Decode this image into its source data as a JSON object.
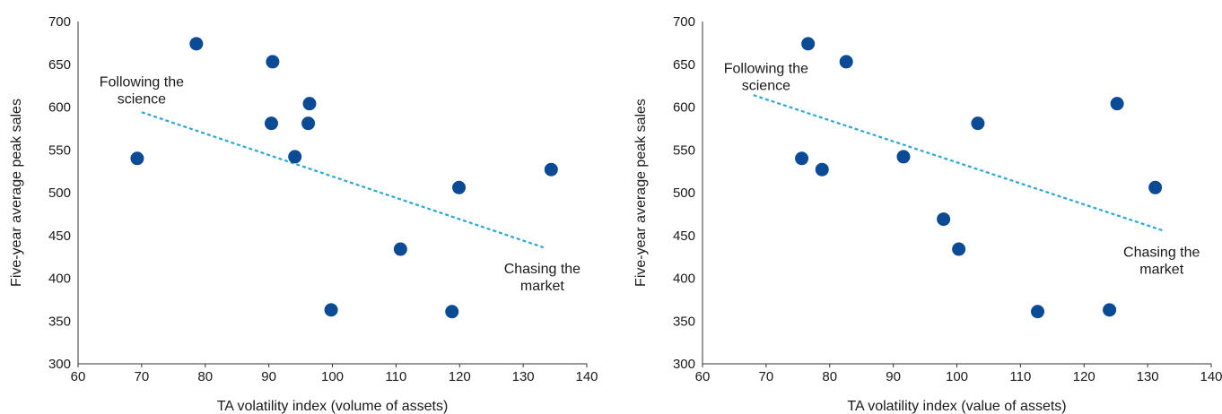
{
  "colors": {
    "point": "#0b4a94",
    "trend": "#29a8d8",
    "axis": "#333333",
    "text": "#1a1a1a"
  },
  "chart_data": [
    {
      "type": "scatter",
      "title": "",
      "xlabel": "TA volatility index (volume of assets)",
      "ylabel": "Five-year average peak sales",
      "xlim": [
        60,
        140
      ],
      "ylim": [
        300,
        700
      ],
      "xticks": [
        "60",
        "70",
        "80",
        "90",
        "100",
        "110",
        "120",
        "130",
        "140"
      ],
      "yticks": [
        "300",
        "350",
        "400",
        "450",
        "500",
        "550",
        "600",
        "650",
        "700"
      ],
      "grid": false,
      "series": [
        {
          "points": [
            {
              "x": 69.3,
              "y": 540
            },
            {
              "x": 78.6,
              "y": 674
            },
            {
              "x": 90.6,
              "y": 653
            },
            {
              "x": 90.4,
              "y": 581
            },
            {
              "x": 96.4,
              "y": 604
            },
            {
              "x": 96.2,
              "y": 581
            },
            {
              "x": 94.1,
              "y": 542
            },
            {
              "x": 99.8,
              "y": 363
            },
            {
              "x": 110.7,
              "y": 434
            },
            {
              "x": 119.9,
              "y": 506
            },
            {
              "x": 118.8,
              "y": 361
            },
            {
              "x": 134.4,
              "y": 527
            }
          ]
        }
      ],
      "trendline": {
        "x1": 70,
        "y1": 594,
        "x2": 133.2,
        "y2": 436
      },
      "annotations": [
        {
          "lines": [
            "Following the",
            "science"
          ],
          "x": 70,
          "y": 624
        },
        {
          "lines": [
            "Chasing the",
            "market"
          ],
          "x": 133,
          "y": 406
        }
      ]
    },
    {
      "type": "scatter",
      "title": "",
      "xlabel": "TA volatility index (value of assets)",
      "ylabel": "Five-year average peak sales",
      "xlim": [
        60,
        140
      ],
      "ylim": [
        300,
        700
      ],
      "xticks": [
        "60",
        "70",
        "80",
        "90",
        "100",
        "110",
        "120",
        "130",
        "140"
      ],
      "yticks": [
        "300",
        "350",
        "400",
        "450",
        "500",
        "550",
        "600",
        "650",
        "700"
      ],
      "grid": false,
      "series": [
        {
          "points": [
            {
              "x": 76.6,
              "y": 674
            },
            {
              "x": 82.6,
              "y": 653
            },
            {
              "x": 75.6,
              "y": 540
            },
            {
              "x": 78.8,
              "y": 527
            },
            {
              "x": 91.6,
              "y": 542
            },
            {
              "x": 103.3,
              "y": 581
            },
            {
              "x": 97.9,
              "y": 469
            },
            {
              "x": 100.3,
              "y": 434
            },
            {
              "x": 125.2,
              "y": 604
            },
            {
              "x": 131.2,
              "y": 506
            },
            {
              "x": 112.7,
              "y": 361
            },
            {
              "x": 124.0,
              "y": 363
            }
          ]
        }
      ],
      "trendline": {
        "x1": 68,
        "y1": 614,
        "x2": 132.3,
        "y2": 456
      },
      "annotations": [
        {
          "lines": [
            "Following the",
            "science"
          ],
          "x": 70,
          "y": 640
        },
        {
          "lines": [
            "Chasing the",
            "market"
          ],
          "x": 132.2,
          "y": 425
        }
      ]
    }
  ]
}
